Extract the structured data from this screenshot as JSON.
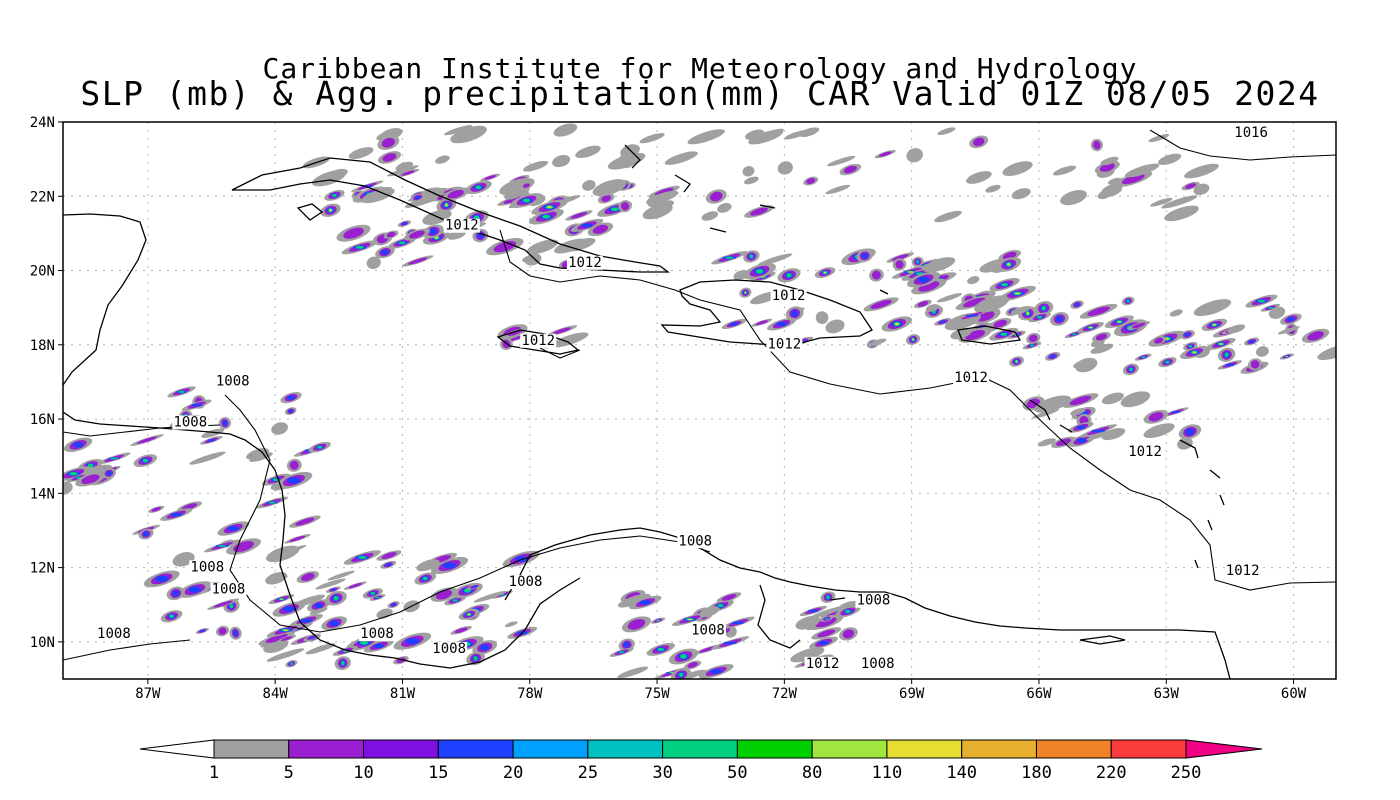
{
  "header": {
    "title_line1": "Caribbean Institute for Meteorology and Hydrology",
    "title_line2": "SLP (mb) & Agg. precipitation(mm) CAR Valid 01Z 08/05 2024"
  },
  "map": {
    "lat_labels": [
      "24N",
      "22N",
      "20N",
      "18N",
      "16N",
      "14N",
      "12N",
      "10N"
    ],
    "lon_labels": [
      "87W",
      "84W",
      "81W",
      "78W",
      "75W",
      "72W",
      "69W",
      "66W",
      "63W",
      "60W"
    ],
    "isobar_labels": [
      {
        "text": "1016",
        "lon": -61.0,
        "lat": 23.6
      },
      {
        "text": "1012",
        "lon": -79.6,
        "lat": 21.1
      },
      {
        "text": "1012",
        "lon": -76.7,
        "lat": 20.1
      },
      {
        "text": "1012",
        "lon": -71.9,
        "lat": 19.2
      },
      {
        "text": "1012",
        "lon": -77.8,
        "lat": 18.0
      },
      {
        "text": "1012",
        "lon": -72.0,
        "lat": 17.9
      },
      {
        "text": "1012",
        "lon": -67.6,
        "lat": 17.0
      },
      {
        "text": "1012",
        "lon": -63.5,
        "lat": 15.0
      },
      {
        "text": "1012",
        "lon": -61.2,
        "lat": 11.8
      },
      {
        "text": "1008",
        "lon": -85.0,
        "lat": 16.9
      },
      {
        "text": "1008",
        "lon": -86.0,
        "lat": 15.8
      },
      {
        "text": "1008",
        "lon": -85.6,
        "lat": 11.9
      },
      {
        "text": "1008",
        "lon": -85.1,
        "lat": 11.3
      },
      {
        "text": "1008",
        "lon": -87.8,
        "lat": 10.1
      },
      {
        "text": "1008",
        "lon": -81.6,
        "lat": 10.1
      },
      {
        "text": "1008",
        "lon": -78.1,
        "lat": 11.5
      },
      {
        "text": "1008",
        "lon": -79.9,
        "lat": 9.7
      },
      {
        "text": "1008",
        "lon": -74.1,
        "lat": 12.6
      },
      {
        "text": "1008",
        "lon": -73.8,
        "lat": 10.2
      },
      {
        "text": "1008",
        "lon": -69.9,
        "lat": 11.0
      },
      {
        "text": "1012",
        "lon": -71.1,
        "lat": 9.3
      },
      {
        "text": "1008",
        "lon": -69.8,
        "lat": 9.3
      }
    ]
  },
  "colorbar": {
    "levels": [
      "1",
      "5",
      "10",
      "15",
      "20",
      "25",
      "30",
      "50",
      "80",
      "110",
      "140",
      "180",
      "220",
      "250"
    ],
    "colors": [
      "#ffffff",
      "#a0a0a0",
      "#9a1fd0",
      "#8010e0",
      "#2040ff",
      "#00a0ff",
      "#00c0c0",
      "#00d080",
      "#00d000",
      "#a0e640",
      "#e6dc32",
      "#e6af2d",
      "#f08228",
      "#fa3c3c",
      "#f00082"
    ]
  }
}
